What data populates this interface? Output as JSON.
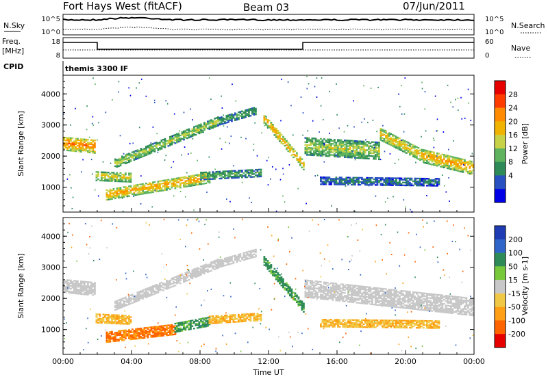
{
  "header": {
    "station": "Fort Hays West (fitACF)",
    "beam": "Beam 03",
    "date": "07/Jun/2011"
  },
  "nsky_panel": {
    "left_label": "N.Sky",
    "right_label": "N.Search",
    "left_ticks": [
      "10^5",
      "10^0"
    ],
    "right_ticks": [
      "10^5",
      "10^0"
    ]
  },
  "freq_panel": {
    "left_label_top": "Freq.",
    "left_label_bottom": "[MHz]",
    "right_label": "Nave",
    "left_ticks": [
      "18",
      "8"
    ],
    "right_ticks": [
      "60",
      "0"
    ],
    "freq_steps": [
      {
        "from_h": 0,
        "to_h": 2,
        "level": "high"
      },
      {
        "from_h": 2,
        "to_h": 14,
        "level": "low"
      },
      {
        "from_h": 14,
        "to_h": 24,
        "level": "high"
      }
    ]
  },
  "cpid": {
    "label": "CPID",
    "text": "themis 3300 IF"
  },
  "range_axis": {
    "label": "Slant Range [km]",
    "ticks": [
      "1000",
      "2000",
      "3000",
      "4000"
    ],
    "tick_values": [
      1000,
      2000,
      3000,
      4000
    ],
    "min": 200,
    "max": 4600
  },
  "time_axis": {
    "label": "Time UT",
    "ticks": [
      "00:00",
      "04:00",
      "08:00",
      "12:00",
      "16:00",
      "20:00",
      "00:00"
    ],
    "tick_hours": [
      0,
      4,
      8,
      12,
      16,
      20,
      24
    ]
  },
  "power_scale": {
    "label": "Power [dB]",
    "ticks": [
      "4",
      "8",
      "12",
      "16",
      "20",
      "24",
      "28"
    ],
    "colors": [
      "#0000e6",
      "#2850c0",
      "#2e8b57",
      "#5fb35f",
      "#c8d246",
      "#f0b400",
      "#ff8c00",
      "#ff3c00",
      "#e60000"
    ]
  },
  "velocity_scale": {
    "label": "Velocity [m s-1]",
    "ticks": [
      "200",
      "100",
      "50",
      "15",
      "-15",
      "-50",
      "-100",
      "-200"
    ],
    "colors": [
      "#1e3cb4",
      "#2f64c8",
      "#2e8b57",
      "#78c83c",
      "#c8c8c8",
      "#f0c846",
      "#ffa014",
      "#ff6400",
      "#e60000"
    ]
  },
  "chart_data": [
    {
      "type": "heatmap",
      "title": "Power [dB]",
      "xlabel": "",
      "ylabel": "Slant Range [km]",
      "xlim": [
        0,
        24
      ],
      "ylim": [
        200,
        4600
      ],
      "bands": [
        {
          "from_h": 0.0,
          "to_h": 1.9,
          "center_km": [
            2400,
            2300
          ],
          "width_km": 450,
          "power_db": 24
        },
        {
          "from_h": 1.9,
          "to_h": 4.0,
          "center_km": [
            1350,
            1300
          ],
          "width_km": 300,
          "power_db": 18
        },
        {
          "from_h": 3.0,
          "to_h": 9.0,
          "center_km": [
            1750,
            3100
          ],
          "width_km": 280,
          "power_db": 16
        },
        {
          "from_h": 9.0,
          "to_h": 11.2,
          "center_km": [
            3100,
            3450
          ],
          "width_km": 250,
          "power_db": 12
        },
        {
          "from_h": 2.5,
          "to_h": 8.5,
          "center_km": [
            750,
            1300
          ],
          "width_km": 350,
          "power_db": 22
        },
        {
          "from_h": 8.0,
          "to_h": 11.5,
          "center_km": [
            1350,
            1450
          ],
          "width_km": 250,
          "power_db": 12
        },
        {
          "from_h": 11.7,
          "to_h": 14.0,
          "center_km": [
            3200,
            1700
          ],
          "width_km": 300,
          "power_db": 22
        },
        {
          "from_h": 14.1,
          "to_h": 18.5,
          "center_km": [
            2300,
            2150
          ],
          "width_km": 550,
          "power_db": 16
        },
        {
          "from_h": 18.5,
          "to_h": 21.0,
          "center_km": [
            2700,
            2000
          ],
          "width_km": 400,
          "power_db": 20
        },
        {
          "from_h": 21.0,
          "to_h": 24.0,
          "center_km": [
            2000,
            1600
          ],
          "width_km": 450,
          "power_db": 22
        },
        {
          "from_h": 15.0,
          "to_h": 22.0,
          "center_km": [
            1200,
            1150
          ],
          "width_km": 250,
          "power_db": 8
        }
      ]
    },
    {
      "type": "heatmap",
      "title": "Velocity [m s-1]",
      "xlabel": "Time UT",
      "ylabel": "Slant Range [km]",
      "xlim": [
        0,
        24
      ],
      "ylim": [
        200,
        4600
      ],
      "bands": [
        {
          "from_h": 0.0,
          "to_h": 1.9,
          "center_km": [
            2400,
            2300
          ],
          "width_km": 450,
          "velocity": 0
        },
        {
          "from_h": 1.9,
          "to_h": 4.0,
          "center_km": [
            1350,
            1300
          ],
          "width_km": 300,
          "velocity": -30
        },
        {
          "from_h": 3.0,
          "to_h": 9.0,
          "center_km": [
            1750,
            3100
          ],
          "width_km": 280,
          "velocity": 0
        },
        {
          "from_h": 9.0,
          "to_h": 11.2,
          "center_km": [
            3100,
            3450
          ],
          "width_km": 250,
          "velocity": 0
        },
        {
          "from_h": 2.5,
          "to_h": 6.5,
          "center_km": [
            750,
            1000
          ],
          "width_km": 350,
          "velocity": -80
        },
        {
          "from_h": 6.5,
          "to_h": 8.5,
          "center_km": [
            1050,
            1250
          ],
          "width_km": 300,
          "velocity": 40
        },
        {
          "from_h": 8.5,
          "to_h": 11.5,
          "center_km": [
            1300,
            1400
          ],
          "width_km": 250,
          "velocity": -30
        },
        {
          "from_h": 11.7,
          "to_h": 14.0,
          "center_km": [
            3200,
            1700
          ],
          "width_km": 300,
          "velocity": 40
        },
        {
          "from_h": 14.1,
          "to_h": 24.0,
          "center_km": [
            2300,
            1700
          ],
          "width_km": 550,
          "velocity": 0
        },
        {
          "from_h": 15.0,
          "to_h": 22.0,
          "center_km": [
            1200,
            1150
          ],
          "width_km": 250,
          "velocity": -30
        }
      ]
    }
  ]
}
